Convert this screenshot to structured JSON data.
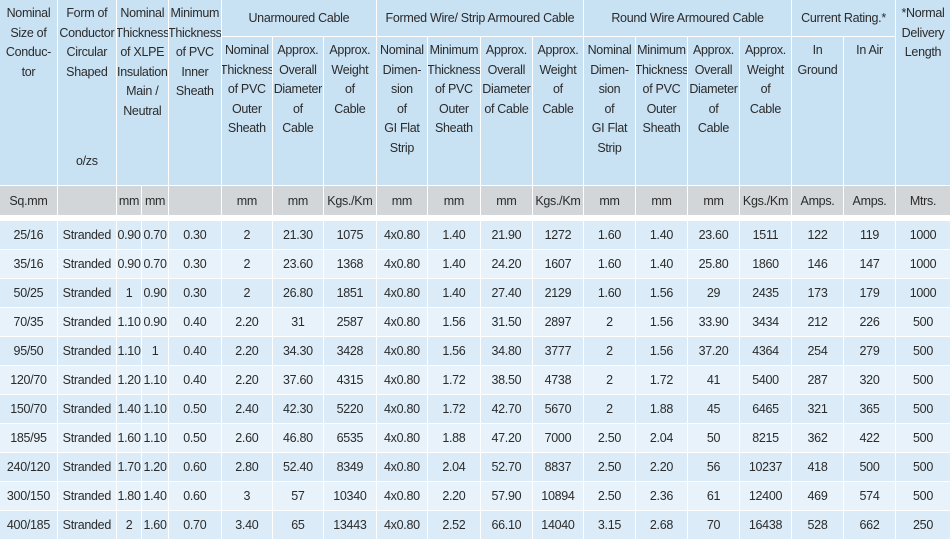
{
  "table": {
    "head": [
      {
        "lines": [
          "Nominal",
          "Size of",
          "Conduc-",
          "tor"
        ]
      },
      {
        "lines": [
          "Form of",
          "Conductor",
          "Circular",
          "Shaped"
        ],
        "note": "o/zs"
      },
      {
        "lines": [
          "Nominal",
          "Thickness",
          "of XLPE",
          "Insulation",
          "Main /",
          "Neutral"
        ]
      },
      {
        "lines": [
          "Minimum",
          "Thickness",
          "of PVC",
          "Inner",
          "Sheath"
        ]
      },
      {
        "lines": [
          "Unarmoured Cable"
        ]
      },
      {
        "lines": [
          "Formed Wire/ Strip Armoured Cable"
        ]
      },
      {
        "lines": [
          "Round Wire Armoured Cable"
        ]
      },
      {
        "lines": [
          "Current Rating.*"
        ]
      },
      {
        "lines": [
          "*Normal",
          "Delivery",
          "Length"
        ]
      }
    ],
    "subhead": [
      {
        "lines": [
          "Nominal",
          "Thickness",
          "of PVC",
          "Outer",
          "Sheath"
        ]
      },
      {
        "lines": [
          "Approx.",
          "Overall",
          "Diameter",
          "of",
          "Cable"
        ]
      },
      {
        "lines": [
          "Approx.",
          "Weight",
          "of",
          "Cable"
        ]
      },
      {
        "lines": [
          "Nominal",
          "Dimen-",
          "sion",
          "of",
          "GI Flat",
          "Strip"
        ]
      },
      {
        "lines": [
          "Minimum",
          "Thickness",
          "of PVC",
          "Outer",
          "Sheath"
        ]
      },
      {
        "lines": [
          "Approx.",
          "Overall",
          "Diameter",
          "of Cable"
        ]
      },
      {
        "lines": [
          "Approx.",
          "Weight",
          "of",
          "Cable"
        ]
      },
      {
        "lines": [
          "Nominal",
          "Dimen-",
          "sion",
          "of",
          "GI Flat",
          "Strip"
        ]
      },
      {
        "lines": [
          "Minimum",
          "Thickness",
          "of PVC",
          "Outer",
          "Sheath"
        ]
      },
      {
        "lines": [
          "Approx.",
          "Overall",
          "Diameter",
          "of",
          "Cable"
        ]
      },
      {
        "lines": [
          "Approx.",
          "Weight",
          "of",
          "Cable"
        ]
      },
      {
        "lines": [
          "In",
          "Ground"
        ]
      },
      {
        "lines": [
          "In Air"
        ]
      }
    ],
    "units": [
      "Sq.mm",
      null,
      "mm",
      "mm",
      null,
      "mm",
      "mm",
      "Kgs./Km",
      "mm",
      "mm",
      "mm",
      "Kgs./Km",
      "mm",
      "mm",
      "mm",
      "Kgs./Km",
      "Amps.",
      "Amps.",
      "Mtrs."
    ],
    "rows": [
      [
        "25/16",
        "Stranded",
        "0.90",
        "0.70",
        "0.30",
        "2",
        "21.30",
        "1075",
        "4x0.80",
        "1.40",
        "21.90",
        "1272",
        "1.60",
        "1.40",
        "23.60",
        "1511",
        "122",
        "119",
        "1000"
      ],
      [
        "35/16",
        "Stranded",
        "0.90",
        "0.70",
        "0.30",
        "2",
        "23.60",
        "1368",
        "4x0.80",
        "1.40",
        "24.20",
        "1607",
        "1.60",
        "1.40",
        "25.80",
        "1860",
        "146",
        "147",
        "1000"
      ],
      [
        "50/25",
        "Stranded",
        "1",
        "0.90",
        "0.30",
        "2",
        "26.80",
        "1851",
        "4x0.80",
        "1.40",
        "27.40",
        "2129",
        "1.60",
        "1.56",
        "29",
        "2435",
        "173",
        "179",
        "1000"
      ],
      [
        "70/35",
        "Stranded",
        "1.10",
        "0.90",
        "0.40",
        "2.20",
        "31",
        "2587",
        "4x0.80",
        "1.56",
        "31.50",
        "2897",
        "2",
        "1.56",
        "33.90",
        "3434",
        "212",
        "226",
        "500"
      ],
      [
        "95/50",
        "Stranded",
        "1.10",
        "1",
        "0.40",
        "2.20",
        "34.30",
        "3428",
        "4x0.80",
        "1.56",
        "34.80",
        "3777",
        "2",
        "1.56",
        "37.20",
        "4364",
        "254",
        "279",
        "500"
      ],
      [
        "120/70",
        "Stranded",
        "1.20",
        "1.10",
        "0.40",
        "2.20",
        "37.60",
        "4315",
        "4x0.80",
        "1.72",
        "38.50",
        "4738",
        "2",
        "1.72",
        "41",
        "5400",
        "287",
        "320",
        "500"
      ],
      [
        "150/70",
        "Stranded",
        "1.40",
        "1.10",
        "0.50",
        "2.40",
        "42.30",
        "5220",
        "4x0.80",
        "1.72",
        "42.70",
        "5670",
        "2",
        "1.88",
        "45",
        "6465",
        "321",
        "365",
        "500"
      ],
      [
        "185/95",
        "Stranded",
        "1.60",
        "1.10",
        "0.50",
        "2.60",
        "46.80",
        "6535",
        "4x0.80",
        "1.88",
        "47.20",
        "7000",
        "2.50",
        "2.04",
        "50",
        "8215",
        "362",
        "422",
        "500"
      ],
      [
        "240/120",
        "Stranded",
        "1.70",
        "1.20",
        "0.60",
        "2.80",
        "52.40",
        "8349",
        "4x0.80",
        "2.04",
        "52.70",
        "8837",
        "2.50",
        "2.20",
        "56",
        "10237",
        "418",
        "500",
        "500"
      ],
      [
        "300/150",
        "Stranded",
        "1.80",
        "1.40",
        "0.60",
        "3",
        "57",
        "10340",
        "4x0.80",
        "2.20",
        "57.90",
        "10894",
        "2.50",
        "2.36",
        "61",
        "12400",
        "469",
        "574",
        "500"
      ],
      [
        "400/185",
        "Stranded",
        "2",
        "1.60",
        "0.70",
        "3.40",
        "65",
        "13443",
        "4x0.80",
        "2.52",
        "66.10",
        "14040",
        "3.15",
        "2.68",
        "70",
        "16438",
        "528",
        "662",
        "250"
      ]
    ]
  }
}
